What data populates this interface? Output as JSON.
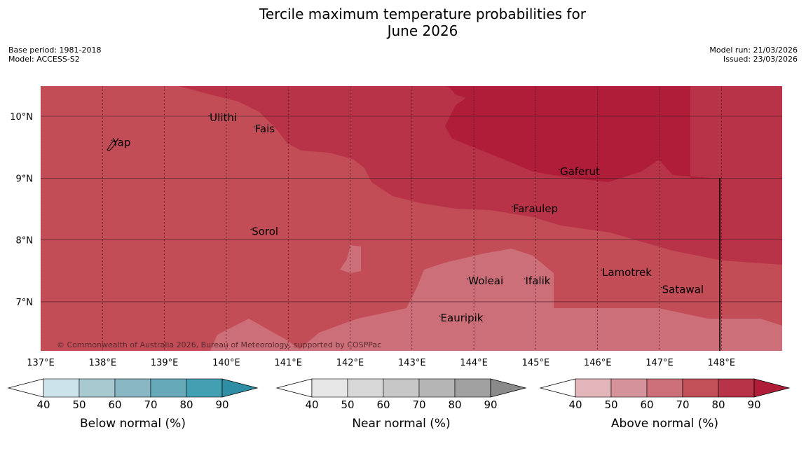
{
  "title_line1": "Tercile maximum temperature probabilities for",
  "title_line2": "June 2026",
  "meta": {
    "base_period": "Base period: 1981-2018",
    "model": "Model: ACCESS-S2",
    "model_run": "Model run: 21/03/2026",
    "issued": "Issued: 23/03/2026"
  },
  "copyright": "© Commonwealth of Australia 2026, Bureau of Meteorology, supported by COSPPac",
  "map": {
    "lon_range": [
      137,
      149
    ],
    "lat_range": [
      6.2,
      10.5
    ],
    "lon_ticks": [
      "137°E",
      "138°E",
      "139°E",
      "140°E",
      "141°E",
      "142°E",
      "143°E",
      "144°E",
      "145°E",
      "146°E",
      "147°E",
      "148°E"
    ],
    "lat_ticks": [
      "10°N",
      "9°N",
      "8°N",
      "7°N"
    ],
    "places": [
      {
        "name": "Yap",
        "lon": 138.15,
        "lat": 9.52
      },
      {
        "name": "Ulithi",
        "lon": 139.72,
        "lat": 9.92
      },
      {
        "name": "Fais",
        "lon": 140.45,
        "lat": 9.74
      },
      {
        "name": "Gaferut",
        "lon": 145.38,
        "lat": 9.05
      },
      {
        "name": "Faraulep",
        "lon": 144.62,
        "lat": 8.45
      },
      {
        "name": "Sorol",
        "lon": 140.4,
        "lat": 8.08
      },
      {
        "name": "Lamotrek",
        "lon": 146.06,
        "lat": 7.42
      },
      {
        "name": "Woleai",
        "lon": 143.9,
        "lat": 7.28
      },
      {
        "name": "Ifalik",
        "lon": 144.82,
        "lat": 7.28
      },
      {
        "name": "Satawal",
        "lon": 147.03,
        "lat": 7.14
      },
      {
        "name": "Eauripik",
        "lon": 143.45,
        "lat": 6.68
      }
    ]
  },
  "legends": [
    {
      "label": "Below normal (%)",
      "ticks": [
        "40",
        "50",
        "60",
        "70",
        "80",
        "90"
      ],
      "colors": [
        "#ffffff",
        "#cde3ea",
        "#a9c9d1",
        "#88b7c3",
        "#66aab9",
        "#43a0b2",
        "#2e8fa4"
      ]
    },
    {
      "label": "Near normal (%)",
      "ticks": [
        "40",
        "50",
        "60",
        "70",
        "80",
        "90"
      ],
      "colors": [
        "#ffffff",
        "#e6e6e6",
        "#d7d7d7",
        "#c7c7c7",
        "#b5b5b5",
        "#a0a0a0",
        "#8a8a8a"
      ]
    },
    {
      "label": "Above normal (%)",
      "ticks": [
        "40",
        "50",
        "60",
        "70",
        "80",
        "90"
      ],
      "colors": [
        "#ffffff",
        "#e2b5bb",
        "#d6929b",
        "#cd6f79",
        "#c15059",
        "#b83347",
        "#b01d38"
      ]
    }
  ]
}
